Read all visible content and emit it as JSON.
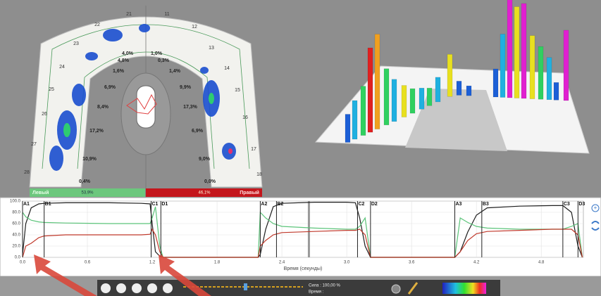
{
  "arch": {
    "left_teeth": [
      "21",
      "22",
      "23",
      "24",
      "25",
      "26",
      "27",
      "28"
    ],
    "right_teeth": [
      "11",
      "12",
      "13",
      "14",
      "15",
      "16",
      "17",
      "18"
    ],
    "left_percents": [
      "4,0%",
      "4,8%",
      "1,6%",
      "6,9%",
      "8,4%",
      "17,2%",
      "10,9%",
      "0,4%"
    ],
    "right_percents": [
      "1,0%",
      "0,3%",
      "1,4%",
      "9,9%",
      "17,3%",
      "6,9%",
      "9,0%",
      "0,0%"
    ],
    "left_label": "Левый",
    "left_total": "53,9%",
    "right_label": "Правый",
    "right_total": "46,1%"
  },
  "chart_data": {
    "type": "line",
    "x_label": "Время (секунды)",
    "x": [
      0,
      0.03,
      0.08,
      0.15,
      0.2,
      0.4,
      0.8,
      1.1,
      1.18,
      1.2,
      1.23,
      1.27,
      1.3,
      2.18,
      2.2,
      2.25,
      2.32,
      2.4,
      2.7,
      3.0,
      3.08,
      3.12,
      3.17,
      3.22,
      4.0,
      4.05,
      4.12,
      4.2,
      4.3,
      4.6,
      4.9,
      5.0,
      5.08,
      5.14,
      5.18
    ],
    "series": [
      {
        "color": "#1e1e1e",
        "values": [
          5,
          60,
          88,
          95,
          96,
          97,
          97,
          96,
          95,
          60,
          10,
          2,
          0,
          0,
          5,
          50,
          90,
          96,
          98,
          98,
          97,
          70,
          20,
          0,
          0,
          10,
          45,
          75,
          88,
          91,
          92,
          92,
          80,
          20,
          0
        ]
      },
      {
        "color": "#5cc47a",
        "values": [
          80,
          72,
          66,
          63,
          62,
          61,
          60,
          60,
          60,
          70,
          90,
          20,
          0,
          0,
          80,
          70,
          60,
          55,
          52,
          50,
          50,
          55,
          70,
          0,
          0,
          70,
          62,
          55,
          52,
          50,
          50,
          50,
          55,
          60,
          0
        ]
      },
      {
        "color": "#c0392b",
        "values": [
          0,
          20,
          25,
          35,
          38,
          40,
          40,
          40,
          41,
          50,
          40,
          10,
          0,
          0,
          20,
          30,
          40,
          44,
          46,
          48,
          48,
          50,
          40,
          0,
          0,
          10,
          30,
          42,
          46,
          48,
          50,
          50,
          50,
          40,
          0
        ]
      }
    ],
    "xlim": [
      0,
      5.19
    ],
    "ylim": [
      0,
      100
    ],
    "xticks": [
      {
        "value": 0,
        "label": "0.0"
      },
      {
        "value": 0.6,
        "label": "0.6"
      },
      {
        "value": 1.2,
        "label": "1.2"
      },
      {
        "value": 1.8,
        "label": "1.8"
      },
      {
        "value": 2.4,
        "label": "2.4"
      },
      {
        "value": 3.0,
        "label": "3.0"
      },
      {
        "value": 3.6,
        "label": "3.6"
      },
      {
        "value": 4.2,
        "label": "4.2"
      },
      {
        "value": 4.8,
        "label": "4.8"
      }
    ],
    "yticks": [
      {
        "value": 0,
        "label": "0.0"
      },
      {
        "value": 20,
        "label": "20.0"
      },
      {
        "value": 40,
        "label": "40.0"
      },
      {
        "value": 60,
        "label": "60.0"
      },
      {
        "value": 80,
        "label": "80.0"
      },
      {
        "value": 100,
        "label": "100.0"
      }
    ],
    "grid": true,
    "markers": [
      {
        "label": "A1",
        "x": 0.0
      },
      {
        "label": "B1",
        "x": 0.2
      },
      {
        "label": "C1",
        "x": 1.19
      },
      {
        "label": "D1",
        "x": 1.28
      },
      {
        "label": "A2",
        "x": 2.2
      },
      {
        "label": "B2",
        "x": 2.35
      },
      {
        "label": "C2",
        "x": 3.1
      },
      {
        "label": "D2",
        "x": 3.22
      },
      {
        "label": "A3",
        "x": 4.0
      },
      {
        "label": "B3",
        "x": 4.25
      },
      {
        "label": "C3",
        "x": 5.0
      },
      {
        "label": "D3",
        "x": 5.14
      }
    ],
    "cursor_x": 2.65
  },
  "toolbar": {
    "force": "Сила : 100,00 %",
    "time": "Время :"
  }
}
